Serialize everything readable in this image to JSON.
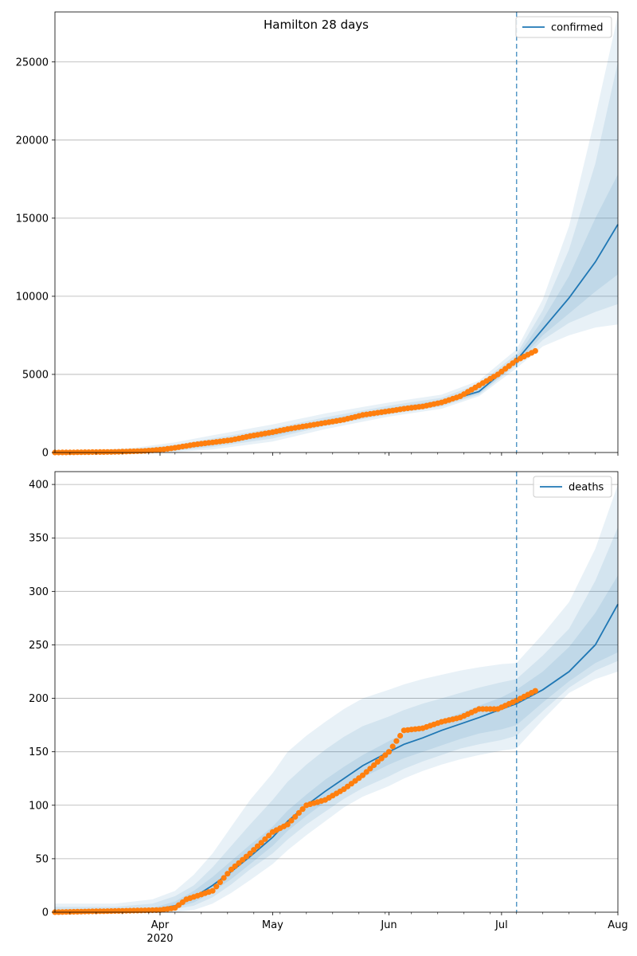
{
  "title": "Hamilton 28 days",
  "colors": {
    "model": "#1f77b4",
    "observed": "#ff7f0e",
    "band": "#1f77b4",
    "grid": "#b0b0b0",
    "vline": "#1f77b4"
  },
  "x_axis": {
    "major_ticks": [
      {
        "date": "2020-04-01",
        "label": "Apr",
        "sublabel": "2020"
      },
      {
        "date": "2020-05-01",
        "label": "May",
        "sublabel": ""
      },
      {
        "date": "2020-06-01",
        "label": "Jun",
        "sublabel": ""
      },
      {
        "date": "2020-07-01",
        "label": "Jul",
        "sublabel": ""
      },
      {
        "date": "2020-08-01",
        "label": "Aug",
        "sublabel": ""
      }
    ],
    "range": [
      "2020-03-04",
      "2020-08-01"
    ]
  },
  "forecast_start": "2020-07-05",
  "chart_data": [
    {
      "type": "line",
      "legend": "confirmed",
      "legend_position": "top-right",
      "grid": "horizontal",
      "title": "Hamilton 28 days",
      "ylim": [
        0,
        28200
      ],
      "yticks": [
        0,
        5000,
        10000,
        15000,
        20000,
        25000
      ],
      "model": {
        "x": [
          "2020-03-04",
          "2020-03-15",
          "2020-03-25",
          "2020-04-05",
          "2020-04-15",
          "2020-05-01",
          "2020-05-15",
          "2020-06-01",
          "2020-06-15",
          "2020-06-25",
          "2020-07-05",
          "2020-07-12",
          "2020-07-19",
          "2020-07-26",
          "2020-08-01"
        ],
        "y": [
          10,
          25,
          90,
          300,
          600,
          1200,
          1900,
          2700,
          3200,
          3900,
          5900,
          7900,
          9900,
          12200,
          14600
        ]
      },
      "bands": [
        {
          "lower": [
            0,
            0,
            0,
            20,
            200,
            700,
            1500,
            2300,
            2800,
            3600,
            5400,
            6800,
            7500,
            8000,
            8200
          ],
          "upper": [
            80,
            150,
            300,
            650,
            1100,
            1800,
            2500,
            3200,
            3700,
            4600,
            6600,
            9800,
            14500,
            21500,
            28000
          ]
        },
        {
          "lower": [
            0,
            0,
            20,
            100,
            350,
            900,
            1700,
            2450,
            2950,
            3700,
            5600,
            7200,
            8300,
            9000,
            9500
          ],
          "upper": [
            50,
            100,
            220,
            500,
            900,
            1550,
            2250,
            3000,
            3500,
            4400,
            6300,
            9100,
            13000,
            18500,
            25000
          ]
        },
        {
          "lower": [
            0,
            5,
            50,
            180,
            450,
            1050,
            1780,
            2550,
            3050,
            3780,
            5700,
            7500,
            8900,
            10300,
            11400
          ],
          "upper": [
            30,
            60,
            150,
            400,
            750,
            1400,
            2100,
            2850,
            3350,
            4100,
            6100,
            8500,
            11300,
            15000,
            17800
          ]
        }
      ],
      "observed": {
        "x": [
          "2020-03-04",
          "2020-03-20",
          "2020-03-28",
          "2020-04-02",
          "2020-04-05",
          "2020-04-10",
          "2020-04-15",
          "2020-04-20",
          "2020-04-25",
          "2020-05-01",
          "2020-05-05",
          "2020-05-10",
          "2020-05-15",
          "2020-05-20",
          "2020-05-25",
          "2020-06-01",
          "2020-06-05",
          "2020-06-10",
          "2020-06-15",
          "2020-06-20",
          "2020-06-25",
          "2020-06-30",
          "2020-07-05",
          "2020-07-10"
        ],
        "y": [
          0,
          40,
          100,
          200,
          300,
          500,
          650,
          800,
          1050,
          1300,
          1500,
          1700,
          1900,
          2100,
          2400,
          2650,
          2800,
          2950,
          3200,
          3600,
          4300,
          5000,
          5900,
          6500
        ]
      }
    },
    {
      "type": "line",
      "legend": "deaths",
      "legend_position": "top-right",
      "grid": "horizontal",
      "ylim": [
        0,
        412
      ],
      "yticks": [
        0,
        50,
        100,
        150,
        200,
        250,
        300,
        350,
        400
      ],
      "model": {
        "x": [
          "2020-03-04",
          "2020-03-20",
          "2020-03-30",
          "2020-04-05",
          "2020-04-10",
          "2020-04-15",
          "2020-04-20",
          "2020-04-25",
          "2020-05-01",
          "2020-05-05",
          "2020-05-10",
          "2020-05-15",
          "2020-05-20",
          "2020-05-25",
          "2020-06-01",
          "2020-06-05",
          "2020-06-10",
          "2020-06-15",
          "2020-06-20",
          "2020-06-25",
          "2020-07-01",
          "2020-07-05",
          "2020-07-12",
          "2020-07-19",
          "2020-07-26",
          "2020-08-01"
        ],
        "y": [
          0,
          0,
          2,
          6,
          14,
          25,
          38,
          52,
          70,
          85,
          100,
          113,
          125,
          137,
          150,
          157,
          163,
          170,
          176,
          182,
          190,
          195,
          208,
          225,
          250,
          288
        ]
      },
      "bands": [
        {
          "lower": [
            0,
            0,
            0,
            0,
            2,
            8,
            18,
            30,
            45,
            58,
            72,
            85,
            98,
            108,
            118,
            125,
            132,
            138,
            143,
            147,
            151,
            153,
            180,
            205,
            218,
            225
          ],
          "upper": [
            8,
            8,
            12,
            20,
            35,
            55,
            80,
            105,
            130,
            150,
            165,
            178,
            190,
            200,
            208,
            213,
            218,
            222,
            226,
            229,
            232,
            233,
            260,
            290,
            340,
            400
          ]
        },
        {
          "lower": [
            0,
            0,
            1,
            3,
            6,
            14,
            26,
            40,
            55,
            68,
            82,
            94,
            106,
            116,
            127,
            134,
            141,
            147,
            153,
            157,
            161,
            165,
            188,
            210,
            226,
            235
          ],
          "upper": [
            5,
            5,
            8,
            15,
            25,
            42,
            62,
            82,
            105,
            122,
            138,
            152,
            164,
            174,
            183,
            189,
            195,
            200,
            205,
            210,
            215,
            218,
            240,
            265,
            310,
            360
          ]
        },
        {
          "lower": [
            0,
            0,
            1,
            4,
            9,
            19,
            31,
            45,
            62,
            76,
            90,
            103,
            115,
            126,
            138,
            144,
            150,
            156,
            162,
            167,
            171,
            175,
            196,
            216,
            233,
            243
          ],
          "upper": [
            2,
            2,
            4,
            10,
            20,
            33,
            48,
            63,
            80,
            95,
            110,
            124,
            136,
            147,
            160,
            167,
            173,
            180,
            186,
            193,
            201,
            208,
            225,
            248,
            280,
            315
          ]
        }
      ],
      "observed": {
        "x": [
          "2020-03-04",
          "2020-04-01",
          "2020-04-05",
          "2020-04-08",
          "2020-04-15",
          "2020-04-20",
          "2020-04-25",
          "2020-05-01",
          "2020-05-05",
          "2020-05-10",
          "2020-05-15",
          "2020-05-20",
          "2020-05-25",
          "2020-06-01",
          "2020-06-05",
          "2020-06-10",
          "2020-06-15",
          "2020-06-20",
          "2020-06-25",
          "2020-06-30",
          "2020-07-05",
          "2020-07-10"
        ],
        "y": [
          0,
          2,
          4,
          12,
          20,
          40,
          55,
          75,
          82,
          100,
          105,
          115,
          128,
          150,
          170,
          172,
          178,
          182,
          190,
          190,
          198,
          207
        ]
      }
    }
  ]
}
